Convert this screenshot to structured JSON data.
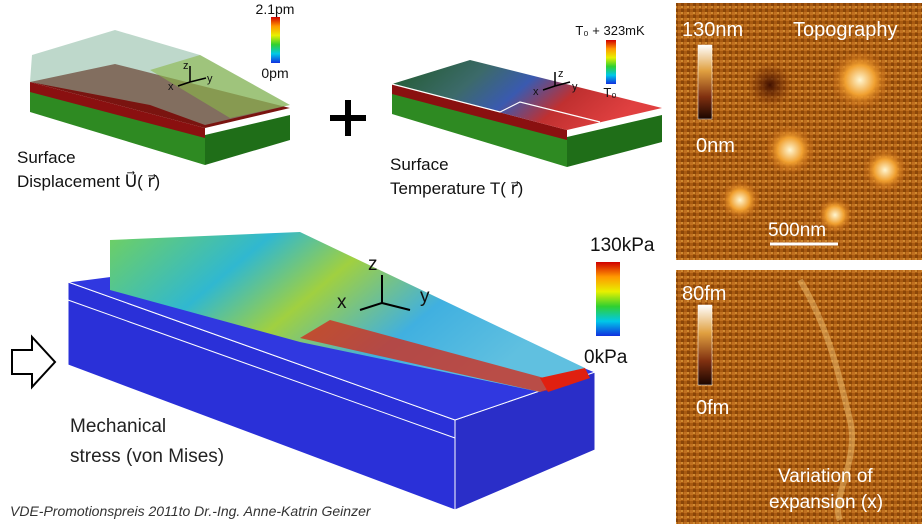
{
  "panels": {
    "displacement": {
      "scale_max": "2.1pm",
      "scale_min": "0pm",
      "axes": [
        "z",
        "x",
        "y"
      ],
      "caption": [
        "Surface",
        "Displacement U⃗( r⃗)"
      ]
    },
    "temperature": {
      "scale_max": "T₀ + 323mK",
      "scale_min": "T₀",
      "axes": [
        "z",
        "x",
        "y"
      ],
      "caption": [
        "Surface",
        "Temperature T( r⃗)"
      ]
    },
    "stress": {
      "scale_max": "130kPa",
      "scale_min": "0kPa",
      "axes": [
        "z",
        "x",
        "y"
      ],
      "caption": [
        "Mechanical",
        "stress (von Mises)"
      ]
    },
    "topography": {
      "scale_max": "130nm",
      "scale_min": "0nm",
      "title": "Topography",
      "scale_bar": "500nm"
    },
    "expansion": {
      "scale_max": "80fm",
      "scale_min": "0fm",
      "caption": [
        "Variation of",
        "expansion (x)"
      ]
    }
  },
  "footer": "VDE-Promotionspreis 2011to Dr.-Ing. Anne-Katrin Geinzer"
}
